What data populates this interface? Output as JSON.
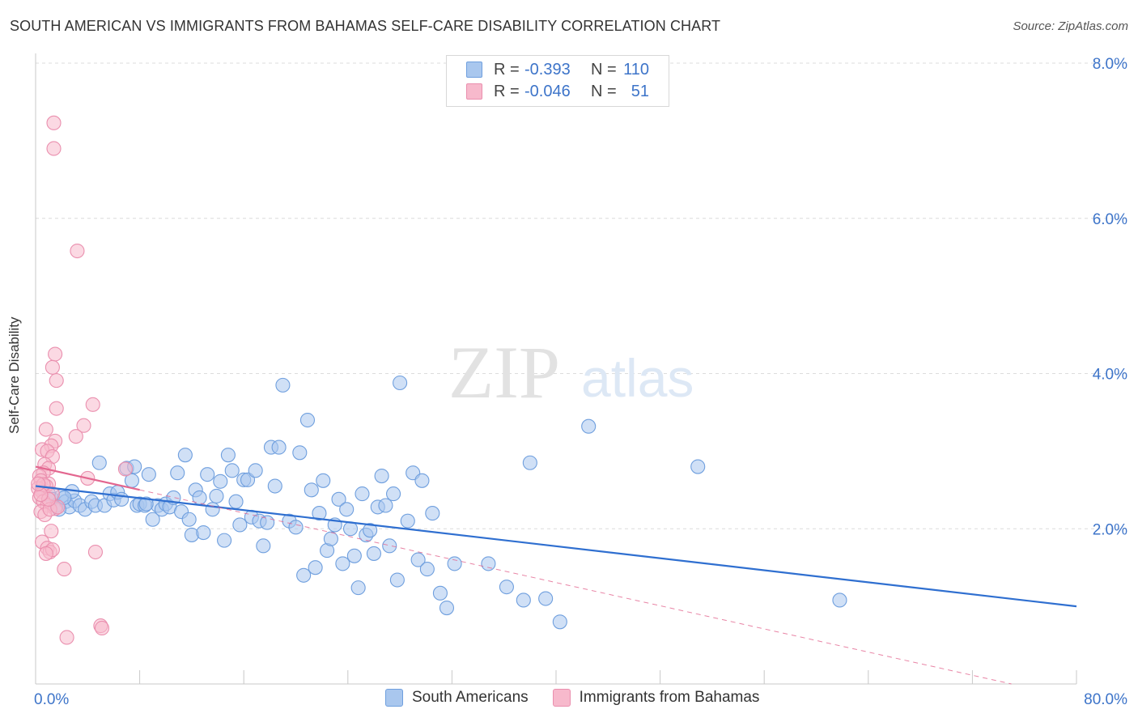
{
  "title": "SOUTH AMERICAN VS IMMIGRANTS FROM BAHAMAS SELF-CARE DISABILITY CORRELATION CHART",
  "source": "Source: ZipAtlas.com",
  "watermark": {
    "zip": "ZIP",
    "atlas": "atlas"
  },
  "legend_top": [
    {
      "r_label": "R =",
      "r_value": "-0.393",
      "n_label": "N =",
      "n_value": "110",
      "color": "#a9c7ee",
      "border": "#6f9fde"
    },
    {
      "r_label": "R =",
      "r_value": "-0.046",
      "n_label": "N =",
      "n_value": "51",
      "color": "#f7b9cc",
      "border": "#ea8fae"
    }
  ],
  "legend_bottom": [
    {
      "label": "South Americans",
      "color": "#a9c7ee",
      "border": "#6f9fde"
    },
    {
      "label": "Immigrants from Bahamas",
      "color": "#f7b9cc",
      "border": "#ea8fae"
    }
  ],
  "chart_data": {
    "type": "scatter",
    "title": "SOUTH AMERICAN VS IMMIGRANTS FROM BAHAMAS SELF-CARE DISABILITY CORRELATION CHART",
    "xlabel": "",
    "ylabel": "Self-Care Disability",
    "xlim": [
      0,
      80
    ],
    "ylim": [
      0,
      8.0
    ],
    "x_tick_labels": [
      {
        "value": 0,
        "label": "0.0%"
      },
      {
        "value": 80,
        "label": "80.0%"
      }
    ],
    "y_tick_labels": [
      {
        "value": 8.0,
        "label": "8.0%"
      },
      {
        "value": 6.0,
        "label": "6.0%"
      },
      {
        "value": 4.0,
        "label": "4.0%"
      },
      {
        "value": 2.0,
        "label": "2.0%"
      }
    ],
    "x_minor_ticks": [
      8,
      16,
      24,
      32,
      40,
      48,
      56,
      64,
      72,
      80
    ],
    "series": [
      {
        "name": "South Americans",
        "color": "#6f9fde",
        "fill": "#a9c7ee",
        "trend": {
          "x0": 0,
          "y0": 2.55,
          "x1": 80,
          "y1": 1.0,
          "solid_to": 80,
          "line_color": "#2f6fd0"
        },
        "points": [
          [
            0.5,
            2.52
          ],
          [
            1.0,
            2.45
          ],
          [
            1.3,
            2.38
          ],
          [
            1.6,
            2.3
          ],
          [
            2.0,
            2.42
          ],
          [
            2.3,
            2.35
          ],
          [
            2.6,
            2.28
          ],
          [
            3.0,
            2.36
          ],
          [
            2.8,
            2.48
          ],
          [
            1.8,
            2.25
          ],
          [
            2.2,
            2.4
          ],
          [
            3.4,
            2.3
          ],
          [
            3.8,
            2.25
          ],
          [
            4.3,
            2.35
          ],
          [
            4.6,
            2.3
          ],
          [
            4.9,
            2.85
          ],
          [
            5.3,
            2.3
          ],
          [
            5.7,
            2.45
          ],
          [
            6.0,
            2.37
          ],
          [
            6.3,
            2.47
          ],
          [
            6.6,
            2.38
          ],
          [
            7.0,
            2.78
          ],
          [
            7.4,
            2.62
          ],
          [
            7.6,
            2.8
          ],
          [
            7.8,
            2.3
          ],
          [
            8.0,
            2.32
          ],
          [
            8.4,
            2.3
          ],
          [
            8.7,
            2.7
          ],
          [
            9.0,
            2.12
          ],
          [
            9.4,
            2.3
          ],
          [
            9.7,
            2.25
          ],
          [
            10.0,
            2.32
          ],
          [
            10.3,
            2.28
          ],
          [
            10.6,
            2.4
          ],
          [
            10.9,
            2.72
          ],
          [
            11.2,
            2.22
          ],
          [
            11.5,
            2.95
          ],
          [
            11.8,
            2.12
          ],
          [
            12.0,
            1.92
          ],
          [
            12.3,
            2.5
          ],
          [
            12.6,
            2.4
          ],
          [
            12.9,
            1.95
          ],
          [
            13.2,
            2.7
          ],
          [
            13.6,
            2.25
          ],
          [
            13.9,
            2.42
          ],
          [
            14.2,
            2.61
          ],
          [
            14.5,
            1.85
          ],
          [
            14.8,
            2.95
          ],
          [
            15.1,
            2.75
          ],
          [
            15.4,
            2.35
          ],
          [
            15.7,
            2.05
          ],
          [
            16.0,
            2.63
          ],
          [
            16.3,
            2.63
          ],
          [
            16.6,
            2.15
          ],
          [
            16.9,
            2.75
          ],
          [
            17.2,
            2.1
          ],
          [
            17.5,
            1.78
          ],
          [
            17.8,
            2.08
          ],
          [
            18.1,
            3.05
          ],
          [
            18.4,
            2.55
          ],
          [
            18.7,
            3.05
          ],
          [
            19.0,
            3.85
          ],
          [
            19.5,
            2.1
          ],
          [
            20.0,
            2.02
          ],
          [
            20.3,
            2.98
          ],
          [
            20.6,
            1.4
          ],
          [
            20.9,
            3.4
          ],
          [
            21.2,
            2.5
          ],
          [
            21.5,
            1.5
          ],
          [
            21.8,
            2.2
          ],
          [
            22.1,
            2.62
          ],
          [
            22.4,
            1.72
          ],
          [
            22.7,
            1.87
          ],
          [
            23.0,
            2.05
          ],
          [
            23.3,
            2.38
          ],
          [
            23.6,
            1.55
          ],
          [
            23.9,
            2.25
          ],
          [
            24.2,
            2.0
          ],
          [
            24.5,
            1.65
          ],
          [
            24.8,
            1.24
          ],
          [
            25.1,
            2.45
          ],
          [
            25.4,
            1.92
          ],
          [
            25.7,
            1.98
          ],
          [
            26.0,
            1.68
          ],
          [
            26.3,
            2.28
          ],
          [
            26.6,
            2.68
          ],
          [
            26.9,
            2.3
          ],
          [
            27.2,
            1.78
          ],
          [
            27.5,
            2.45
          ],
          [
            27.8,
            1.34
          ],
          [
            28.0,
            3.88
          ],
          [
            28.6,
            2.1
          ],
          [
            29.0,
            2.72
          ],
          [
            29.4,
            1.6
          ],
          [
            29.7,
            2.62
          ],
          [
            30.1,
            1.48
          ],
          [
            30.5,
            2.2
          ],
          [
            31.1,
            1.17
          ],
          [
            31.6,
            0.98
          ],
          [
            32.2,
            1.55
          ],
          [
            34.8,
            1.55
          ],
          [
            36.2,
            1.25
          ],
          [
            37.5,
            1.08
          ],
          [
            38.0,
            2.85
          ],
          [
            39.2,
            1.1
          ],
          [
            40.3,
            0.8
          ],
          [
            42.5,
            3.32
          ],
          [
            50.9,
            2.8
          ],
          [
            61.8,
            1.08
          ],
          [
            8.5,
            2.32
          ]
        ]
      },
      {
        "name": "Immigrants from Bahamas",
        "color": "#ea8fae",
        "fill": "#f7b9cc",
        "trend": {
          "x0": 0,
          "y0": 2.8,
          "x1": 75,
          "y1": 0.0,
          "solid_to": 8,
          "line_color": "#e3668f"
        },
        "points": [
          [
            1.4,
            7.23
          ],
          [
            1.4,
            6.9
          ],
          [
            3.2,
            5.58
          ],
          [
            1.5,
            4.25
          ],
          [
            1.3,
            4.08
          ],
          [
            1.6,
            3.91
          ],
          [
            4.4,
            3.6
          ],
          [
            1.6,
            3.55
          ],
          [
            3.7,
            3.33
          ],
          [
            0.8,
            3.28
          ],
          [
            3.1,
            3.19
          ],
          [
            1.5,
            3.13
          ],
          [
            1.2,
            3.07
          ],
          [
            0.5,
            3.02
          ],
          [
            0.9,
            3.0
          ],
          [
            1.3,
            2.93
          ],
          [
            0.7,
            2.83
          ],
          [
            1.0,
            2.78
          ],
          [
            0.6,
            2.72
          ],
          [
            0.3,
            2.68
          ],
          [
            0.4,
            2.62
          ],
          [
            1.0,
            2.58
          ],
          [
            0.8,
            2.55
          ],
          [
            0.2,
            2.52
          ],
          [
            0.5,
            2.48
          ],
          [
            1.3,
            2.45
          ],
          [
            0.3,
            2.4
          ],
          [
            0.6,
            2.35
          ],
          [
            0.9,
            2.3
          ],
          [
            1.5,
            2.26
          ],
          [
            0.4,
            2.22
          ],
          [
            0.7,
            2.18
          ],
          [
            1.1,
            2.25
          ],
          [
            1.7,
            2.28
          ],
          [
            4.0,
            2.65
          ],
          [
            6.9,
            2.77
          ],
          [
            0.6,
            2.57
          ],
          [
            1.0,
            2.38
          ],
          [
            1.2,
            1.97
          ],
          [
            0.5,
            1.83
          ],
          [
            0.9,
            1.75
          ],
          [
            1.1,
            1.7
          ],
          [
            1.3,
            1.73
          ],
          [
            0.8,
            1.68
          ],
          [
            4.6,
            1.7
          ],
          [
            2.2,
            1.48
          ],
          [
            5.0,
            0.75
          ],
          [
            5.1,
            0.72
          ],
          [
            2.4,
            0.6
          ],
          [
            0.4,
            2.44
          ],
          [
            0.2,
            2.58
          ]
        ]
      }
    ]
  }
}
